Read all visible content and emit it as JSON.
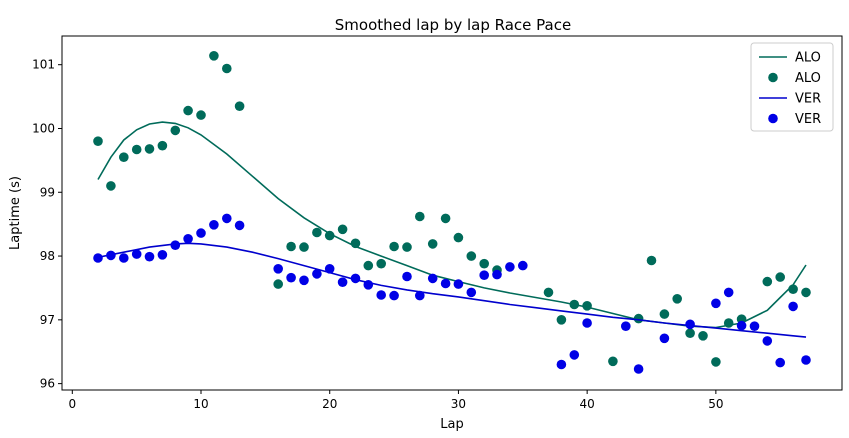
{
  "chart_data": {
    "type": "scatter",
    "title": "Smoothed lap by lap Race Pace",
    "xlabel": "Lap",
    "ylabel": "Laptime (s)",
    "xlim": [
      -0.8,
      59.8
    ],
    "ylim": [
      95.9,
      101.45
    ],
    "xticks": [
      0,
      10,
      20,
      30,
      40,
      50
    ],
    "yticks": [
      96,
      97,
      98,
      99,
      100,
      101
    ],
    "grid": false,
    "legend_position": "top-right",
    "series": [
      {
        "name": "ALO",
        "kind": "line",
        "color": "#006b5a",
        "x": [
          2,
          3,
          4,
          5,
          6,
          7,
          8,
          9,
          10,
          12,
          14,
          16,
          18,
          20,
          22,
          24,
          26,
          28,
          30,
          32,
          34,
          36,
          38,
          40,
          42,
          44,
          46,
          48,
          50,
          52,
          54,
          55,
          56,
          57
        ],
        "y": [
          99.2,
          99.55,
          99.82,
          99.98,
          100.07,
          100.1,
          100.08,
          100.01,
          99.9,
          99.6,
          99.25,
          98.9,
          98.6,
          98.35,
          98.15,
          98.0,
          97.85,
          97.7,
          97.6,
          97.5,
          97.42,
          97.35,
          97.28,
          97.2,
          97.1,
          97.0,
          96.95,
          96.9,
          96.88,
          96.95,
          97.15,
          97.35,
          97.55,
          97.86
        ]
      },
      {
        "name": "ALO",
        "kind": "scatter",
        "color": "#006b5a",
        "x": [
          2,
          3,
          4,
          5,
          6,
          7,
          8,
          9,
          10,
          11,
          12,
          13,
          16,
          17,
          18,
          19,
          20,
          21,
          22,
          23,
          24,
          25,
          26,
          27,
          28,
          29,
          30,
          31,
          32,
          33,
          37,
          38,
          39,
          40,
          42,
          44,
          45,
          46,
          47,
          48,
          49,
          50,
          51,
          52,
          54,
          55,
          56,
          57
        ],
        "y": [
          99.8,
          99.1,
          99.55,
          99.67,
          99.68,
          99.73,
          99.97,
          100.28,
          100.21,
          101.14,
          100.94,
          100.35,
          97.56,
          98.15,
          98.14,
          98.37,
          98.32,
          98.42,
          98.2,
          97.85,
          97.88,
          98.15,
          98.14,
          98.62,
          98.19,
          98.59,
          98.29,
          98.0,
          97.88,
          97.78,
          97.43,
          97.0,
          97.24,
          97.22,
          96.35,
          97.02,
          97.93,
          97.09,
          97.33,
          96.79,
          96.75,
          96.34,
          96.95,
          97.01,
          97.6,
          97.67,
          97.48,
          97.43
        ]
      },
      {
        "name": "VER",
        "kind": "line",
        "color": "#0000cd",
        "x": [
          2,
          4,
          6,
          8,
          9,
          10,
          12,
          14,
          16,
          18,
          20,
          22,
          24,
          26,
          28,
          30,
          32,
          34,
          36,
          38,
          40,
          42,
          44,
          46,
          48,
          50,
          52,
          54,
          56,
          57
        ],
        "y": [
          97.98,
          98.06,
          98.14,
          98.19,
          98.2,
          98.19,
          98.14,
          98.06,
          97.96,
          97.85,
          97.74,
          97.63,
          97.54,
          97.47,
          97.41,
          97.36,
          97.3,
          97.24,
          97.19,
          97.14,
          97.09,
          97.04,
          97.0,
          96.95,
          96.91,
          96.87,
          96.83,
          96.79,
          96.75,
          96.73
        ]
      },
      {
        "name": "VER",
        "kind": "scatter",
        "color": "#0000e6",
        "x": [
          2,
          3,
          4,
          5,
          6,
          7,
          8,
          9,
          10,
          11,
          12,
          13,
          16,
          17,
          18,
          19,
          20,
          21,
          22,
          23,
          24,
          25,
          26,
          27,
          28,
          29,
          30,
          31,
          32,
          33,
          34,
          35,
          38,
          39,
          40,
          43,
          44,
          46,
          48,
          50,
          51,
          52,
          53,
          54,
          55,
          56,
          57
        ],
        "y": [
          97.97,
          98.01,
          97.97,
          98.03,
          97.99,
          98.02,
          98.17,
          98.27,
          98.36,
          98.49,
          98.59,
          98.48,
          97.8,
          97.66,
          97.62,
          97.72,
          97.8,
          97.59,
          97.65,
          97.55,
          97.39,
          97.38,
          97.68,
          97.38,
          97.65,
          97.57,
          97.56,
          97.43,
          97.7,
          97.71,
          97.83,
          97.85,
          96.3,
          96.45,
          96.95,
          96.9,
          96.23,
          96.71,
          96.93,
          97.26,
          97.43,
          96.91,
          96.9,
          96.67,
          96.33,
          97.21,
          96.37
        ]
      }
    ]
  }
}
